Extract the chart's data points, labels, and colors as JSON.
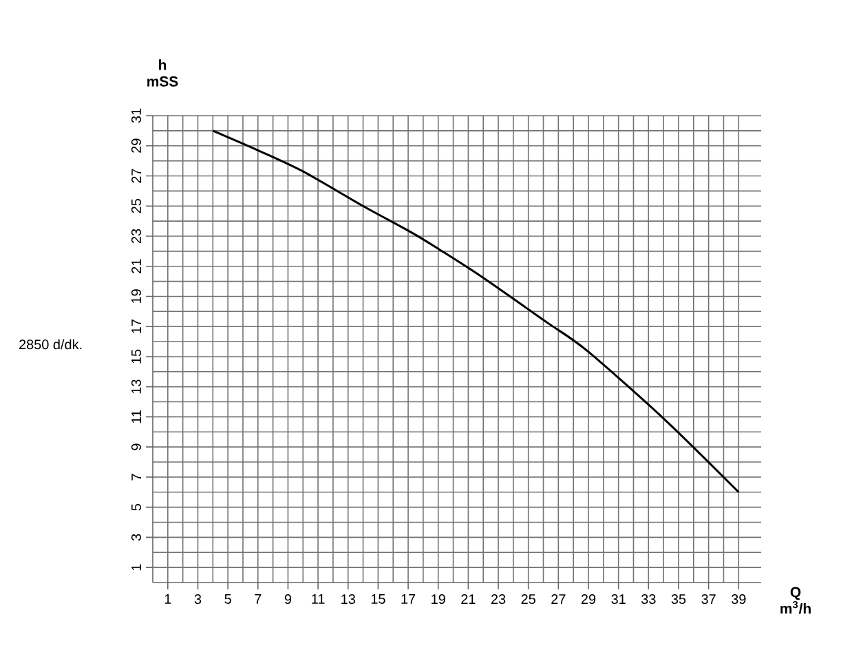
{
  "chart_data": {
    "type": "line",
    "xlabel": "Q m$^{3}$/h",
    "ylabel": "h mSS",
    "annotations": [
      "2850 d/dk."
    ],
    "series": [
      {
        "color": "#000000",
        "x": [
          4,
          7,
          10,
          14,
          17.3,
          19.1,
          21.9,
          26.2,
          28.9,
          34.1,
          39
        ],
        "values": [
          30,
          28.7,
          27.3,
          25,
          23.2,
          22.1,
          20.3,
          17.3,
          15.4,
          10.8,
          6
        ]
      }
    ],
    "xlim": [
      0,
      40.5
    ],
    "ylim": [
      0,
      31
    ],
    "xticks": [
      1,
      3,
      5,
      7,
      9,
      11,
      13,
      15,
      17,
      19,
      21,
      23,
      25,
      27,
      29,
      31,
      33,
      35,
      37,
      39
    ],
    "yticks": [
      1,
      3,
      5,
      7,
      9,
      11,
      13,
      15,
      17,
      19,
      21,
      23,
      25,
      27,
      29,
      31
    ],
    "grid": true
  }
}
